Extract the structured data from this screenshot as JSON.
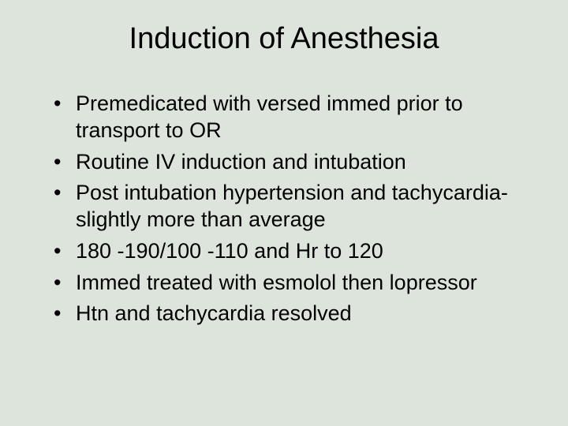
{
  "slide": {
    "title": "Induction of Anesthesia",
    "title_fontsize": 38,
    "title_color": "#000000",
    "background_color": "#dde4dc",
    "body_fontsize": 27,
    "body_color": "#000000",
    "bullets": [
      "Premedicated with versed immed prior to transport to OR",
      "Routine IV induction and intubation",
      "Post intubation hypertension and tachycardia-slightly more than average",
      "180 -190/100 -110 and Hr to 120",
      "Immed treated with esmolol then lopressor",
      "Htn and tachycardia resolved"
    ]
  }
}
